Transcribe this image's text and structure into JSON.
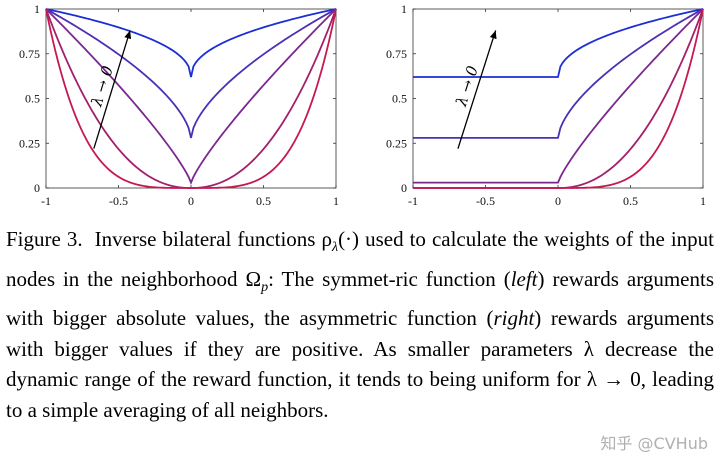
{
  "chart_data": [
    {
      "type": "line",
      "panel": "left",
      "function": "symmetric",
      "xlim": [
        -1,
        1
      ],
      "ylim": [
        0,
        1
      ],
      "x_ticks": [
        "-1",
        "-0.5",
        "0",
        "0.5",
        "1"
      ],
      "y_ticks": [
        "0",
        "0.25",
        "0.5",
        "0.75",
        "1"
      ],
      "series": [
        {
          "color": "#1a2fd6",
          "min_value": 0.62
        },
        {
          "color": "#4d2fb5",
          "min_value": 0.28
        },
        {
          "color": "#7a2890",
          "min_value": 0.03
        },
        {
          "color": "#a2206c",
          "min_value": 0.0
        },
        {
          "color": "#c41a50",
          "min_value": 0.0
        }
      ],
      "annotation": {
        "text": "λ → 0"
      }
    },
    {
      "type": "line",
      "panel": "right",
      "function": "asymmetric",
      "xlim": [
        -1,
        1
      ],
      "ylim": [
        0,
        1
      ],
      "x_ticks": [
        "-1",
        "-0.5",
        "0",
        "0.5",
        "1"
      ],
      "y_ticks": [
        "0",
        "0.25",
        "0.5",
        "0.75",
        "1"
      ],
      "series": [
        {
          "color": "#1a2fd6",
          "min_value": 0.62
        },
        {
          "color": "#4d2fb5",
          "min_value": 0.28
        },
        {
          "color": "#7a2890",
          "min_value": 0.03
        },
        {
          "color": "#a2206c",
          "min_value": 0.0
        },
        {
          "color": "#c41a50",
          "min_value": 0.0
        }
      ],
      "annotation": {
        "text": "λ → 0"
      }
    }
  ],
  "caption": {
    "label": "Figure 3.",
    "p1": "Inverse bilateral functions ρ",
    "sub_lambda": "λ",
    "p2": "(·) used to calculate the weights of the input nodes in the neighborhood Ω",
    "sub_p": "p",
    "p3": ": The symmet-ric function (",
    "left": "left",
    "p4": ") rewards arguments with bigger absolute values, the asymmetric function (",
    "right": "right",
    "p5": ") rewards arguments with bigger values if they are positive. As smaller parameters λ decrease the dynamic range of the reward function, it tends to being uniform for λ → 0, leading to a simple averaging of all neighbors."
  },
  "watermark": "知乎 @CVHub"
}
